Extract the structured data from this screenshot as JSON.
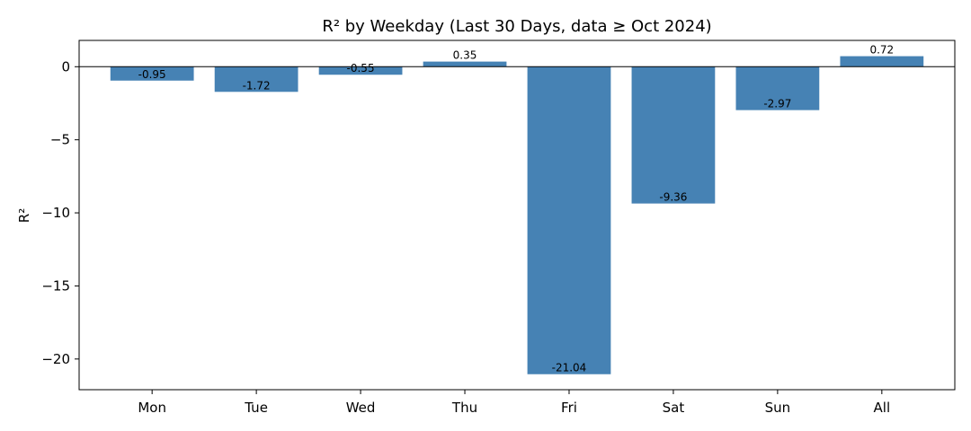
{
  "chart_data": {
    "type": "bar",
    "title": "R² by Weekday (Last 30 Days, data ≥ Oct 2024)",
    "xlabel": "",
    "ylabel": "R²",
    "categories": [
      "Mon",
      "Tue",
      "Wed",
      "Thu",
      "Fri",
      "Sat",
      "Sun",
      "All"
    ],
    "values": [
      -0.95,
      -1.72,
      -0.55,
      0.35,
      -21.04,
      -9.36,
      -2.97,
      0.72
    ],
    "value_labels": [
      "-0.95",
      "-1.72",
      "-0.55",
      "0.35",
      "-21.04",
      "-9.36",
      "-2.97",
      "0.72"
    ],
    "ylim": [
      -22.1,
      1.8
    ],
    "yticks": [
      0,
      -5,
      -10,
      -15,
      -20
    ],
    "ytick_labels": [
      "0",
      "−5",
      "−10",
      "−15",
      "−20"
    ],
    "grid": false,
    "zero_line": true,
    "bar_color": "#4682b4"
  }
}
